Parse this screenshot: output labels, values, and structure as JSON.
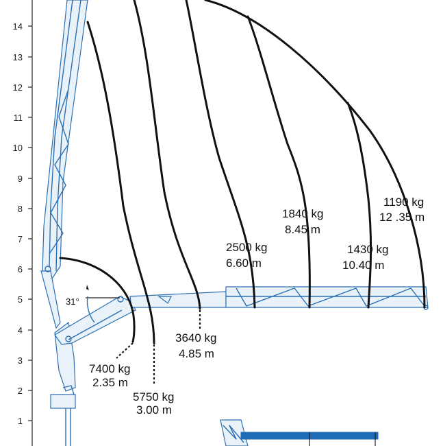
{
  "axis": {
    "y_ticks": [
      "14",
      "13",
      "12",
      "11",
      "10",
      "9",
      "8",
      "7",
      "6",
      "5",
      "4",
      "3",
      "2",
      "1"
    ]
  },
  "boom_angle": "31°",
  "load_points": [
    {
      "load": "7400 kg",
      "reach": "2.35 m"
    },
    {
      "load": "5750 kg",
      "reach": "3.00 m"
    },
    {
      "load": "3640 kg",
      "reach": "4.85 m"
    },
    {
      "load": "2500 kg",
      "reach": "6.60 m"
    },
    {
      "load": "1840 kg",
      "reach": "8.45 m"
    },
    {
      "load": "1430 kg",
      "reach": "10.40 m"
    },
    {
      "load": "1190 kg",
      "reach": "12 .35 m"
    }
  ],
  "colors": {
    "crane": "#2a6fb3",
    "curve": "#111111",
    "text": "#111111"
  }
}
